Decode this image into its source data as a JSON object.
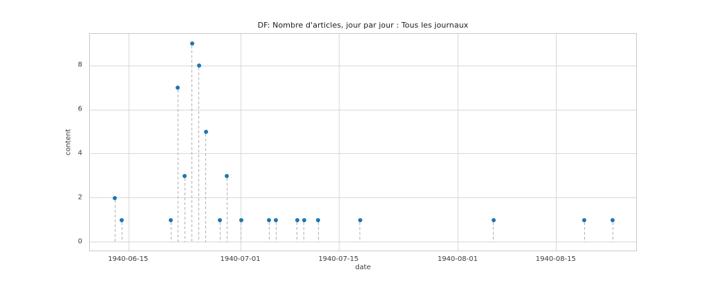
{
  "page": {
    "background_color": "#ffffff"
  },
  "chart_data": {
    "type": "scatter",
    "variant": "stem",
    "title": "DF: Nombre d'articles, jour par jour : Tous les journaux",
    "xlabel": "date",
    "ylabel": "content",
    "points": [
      {
        "date": "1940-06-13",
        "value": 2
      },
      {
        "date": "1940-06-14",
        "value": 1
      },
      {
        "date": "1940-06-21",
        "value": 1
      },
      {
        "date": "1940-06-22",
        "value": 7
      },
      {
        "date": "1940-06-23",
        "value": 3
      },
      {
        "date": "1940-06-24",
        "value": 9
      },
      {
        "date": "1940-06-25",
        "value": 8
      },
      {
        "date": "1940-06-26",
        "value": 5
      },
      {
        "date": "1940-06-28",
        "value": 1
      },
      {
        "date": "1940-06-29",
        "value": 3
      },
      {
        "date": "1940-07-01",
        "value": 1
      },
      {
        "date": "1940-07-05",
        "value": 1
      },
      {
        "date": "1940-07-06",
        "value": 1
      },
      {
        "date": "1940-07-09",
        "value": 1
      },
      {
        "date": "1940-07-10",
        "value": 1
      },
      {
        "date": "1940-07-12",
        "value": 1
      },
      {
        "date": "1940-07-18",
        "value": 1
      },
      {
        "date": "1940-08-06",
        "value": 1
      },
      {
        "date": "1940-08-19",
        "value": 1
      },
      {
        "date": "1940-08-23",
        "value": 1
      }
    ],
    "x_ticks": [
      {
        "date": "1940-06-15",
        "label": "1940-06-15"
      },
      {
        "date": "1940-07-01",
        "label": "1940-07-01"
      },
      {
        "date": "1940-07-15",
        "label": "1940-07-15"
      },
      {
        "date": "1940-08-01",
        "label": "1940-08-01"
      },
      {
        "date": "1940-08-15",
        "label": "1940-08-15"
      }
    ],
    "y_ticks": [
      0,
      2,
      4,
      6,
      8
    ],
    "ylim": [
      -0.45,
      9.45
    ],
    "x_margin_frac": 0.05,
    "baseline_value": 0,
    "grid": true,
    "legend_position": "none",
    "colors": {
      "marker": "#1f77b4",
      "stem": "#b0b0b0",
      "grid": "#d8d8d8",
      "spine": "#c8c8c8",
      "tick_text": "#3a3a3a",
      "title_text": "#1a1a1a"
    }
  }
}
